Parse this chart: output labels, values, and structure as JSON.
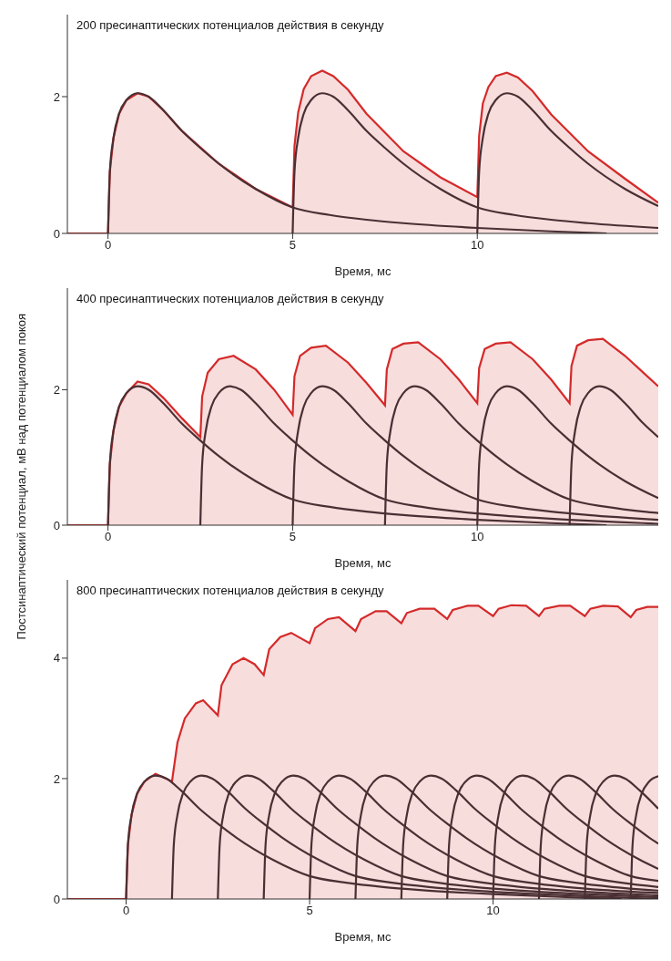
{
  "chart_data": [
    {
      "type": "line",
      "title": "200 пресинаптических потенциалов действия в секунду",
      "xlabel": "Время, мс",
      "xlim": [
        -1.1,
        14.9
      ],
      "xticks": [
        0,
        5,
        10
      ],
      "ylim": [
        0,
        3.2
      ],
      "yticks": [
        0,
        2
      ],
      "marker": "none",
      "line_style": "solid",
      "series": [
        {
          "type": "area",
          "color": "#d42a2a",
          "x": [
            -1.1,
            0,
            0.05,
            0.15,
            0.3,
            0.5,
            0.8,
            1.1,
            1.5,
            2,
            3,
            4,
            5,
            5.05,
            5.15,
            5.3,
            5.5,
            5.8,
            6.1,
            6.5,
            7,
            8,
            9,
            10,
            10.05,
            10.15,
            10.3,
            10.5,
            10.8,
            11.1,
            11.5,
            12,
            13,
            14,
            14.9
          ],
          "values": [
            0,
            0,
            0.9,
            1.4,
            1.75,
            1.95,
            2.05,
            2.0,
            1.8,
            1.5,
            1.02,
            0.65,
            0.38,
            1.28,
            1.77,
            2.11,
            2.3,
            2.38,
            2.3,
            2.1,
            1.75,
            1.2,
            0.82,
            0.53,
            1.43,
            1.9,
            2.14,
            2.3,
            2.35,
            2.28,
            2.08,
            1.74,
            1.2,
            0.8,
            0.45
          ]
        },
        {
          "color": "#4a2f33",
          "x": [
            0,
            0.05,
            0.15,
            0.3,
            0.5,
            0.8,
            1.1,
            1.5,
            2,
            2.5,
            3,
            4,
            5,
            6,
            7,
            8,
            10,
            12,
            13.5
          ],
          "values": [
            0,
            0.9,
            1.4,
            1.75,
            1.95,
            2.05,
            2.0,
            1.8,
            1.5,
            1.25,
            1.02,
            0.65,
            0.38,
            0.27,
            0.2,
            0.15,
            0.08,
            0.03,
            0
          ]
        },
        {
          "color": "#4a2f33",
          "x": [
            5,
            5.05,
            5.15,
            5.3,
            5.5,
            5.8,
            6.1,
            6.5,
            7,
            7.5,
            8,
            9,
            10,
            11,
            12,
            13,
            14.9
          ],
          "values": [
            0,
            0.9,
            1.4,
            1.75,
            1.95,
            2.05,
            2.0,
            1.8,
            1.5,
            1.25,
            1.02,
            0.65,
            0.38,
            0.27,
            0.2,
            0.15,
            0.08
          ]
        },
        {
          "color": "#4a2f33",
          "x": [
            10,
            10.05,
            10.15,
            10.3,
            10.5,
            10.8,
            11.1,
            11.5,
            12,
            12.5,
            13,
            14,
            14.9
          ],
          "values": [
            0,
            0.9,
            1.4,
            1.75,
            1.95,
            2.05,
            2.0,
            1.8,
            1.5,
            1.25,
            1.02,
            0.65,
            0.4
          ]
        }
      ]
    },
    {
      "type": "line",
      "title": "400 пресинаптических потенциалов действия в секунду",
      "xlabel": "Время, мс",
      "ylabel": "Постсинаптический потенциал, мВ над потенциалом покоя",
      "xlim": [
        -1.1,
        14.9
      ],
      "xticks": [
        0,
        5,
        10
      ],
      "ylim": [
        0,
        3.5
      ],
      "yticks": [
        0,
        2
      ],
      "marker": "none",
      "line_style": "solid",
      "series": [
        {
          "type": "area",
          "color": "#d42a2a",
          "x": [
            -1.1,
            0,
            0.05,
            0.15,
            0.3,
            0.5,
            0.8,
            1.1,
            1.5,
            2,
            2.5,
            2.55,
            2.7,
            3,
            3.4,
            4,
            4.5,
            5,
            5.05,
            5.2,
            5.5,
            5.9,
            6.5,
            7,
            7.5,
            7.55,
            7.7,
            8,
            8.4,
            9,
            9.5,
            10,
            10.05,
            10.2,
            10.5,
            10.9,
            11.5,
            12,
            12.5,
            12.55,
            12.7,
            13,
            13.4,
            14,
            14.5,
            14.9
          ],
          "values": [
            0,
            0,
            0.9,
            1.4,
            1.75,
            1.95,
            2.12,
            2.08,
            1.88,
            1.58,
            1.3,
            1.9,
            2.25,
            2.45,
            2.5,
            2.3,
            2.0,
            1.63,
            2.2,
            2.5,
            2.62,
            2.65,
            2.4,
            2.1,
            1.77,
            2.3,
            2.6,
            2.68,
            2.7,
            2.45,
            2.15,
            1.8,
            2.32,
            2.6,
            2.68,
            2.7,
            2.45,
            2.15,
            1.8,
            2.35,
            2.65,
            2.73,
            2.75,
            2.5,
            2.25,
            2.05
          ]
        },
        {
          "color": "#4a2f33",
          "x": [
            0,
            0.05,
            0.15,
            0.3,
            0.5,
            0.8,
            1.1,
            1.5,
            2,
            2.5,
            3,
            4,
            5,
            6,
            7,
            8,
            10,
            12,
            13.5
          ],
          "values": [
            0,
            0.9,
            1.4,
            1.75,
            1.95,
            2.05,
            2.0,
            1.8,
            1.5,
            1.25,
            1.02,
            0.65,
            0.38,
            0.27,
            0.2,
            0.15,
            0.08,
            0.03,
            0
          ]
        },
        {
          "color": "#4a2f33",
          "x": [
            2.5,
            2.55,
            2.65,
            2.8,
            3,
            3.3,
            3.6,
            4,
            4.5,
            5,
            5.5,
            6.5,
            7.5,
            8.5,
            9.5,
            10.5,
            12.5,
            14.5,
            14.9
          ],
          "values": [
            0,
            0.9,
            1.4,
            1.75,
            1.95,
            2.05,
            2.0,
            1.8,
            1.5,
            1.25,
            1.02,
            0.65,
            0.38,
            0.27,
            0.2,
            0.15,
            0.08,
            0.03,
            0.02
          ]
        },
        {
          "color": "#4a2f33",
          "x": [
            5,
            5.05,
            5.15,
            5.3,
            5.5,
            5.8,
            6.1,
            6.5,
            7,
            7.5,
            8,
            9,
            10,
            11,
            12,
            13,
            14.9
          ],
          "values": [
            0,
            0.9,
            1.4,
            1.75,
            1.95,
            2.05,
            2.0,
            1.8,
            1.5,
            1.25,
            1.02,
            0.65,
            0.38,
            0.27,
            0.2,
            0.15,
            0.08
          ]
        },
        {
          "color": "#4a2f33",
          "x": [
            7.5,
            7.55,
            7.65,
            7.8,
            8,
            8.3,
            8.6,
            9,
            9.5,
            10,
            10.5,
            11.5,
            12.5,
            13.5,
            14.5,
            14.9
          ],
          "values": [
            0,
            0.9,
            1.4,
            1.75,
            1.95,
            2.05,
            2.0,
            1.8,
            1.5,
            1.25,
            1.02,
            0.65,
            0.38,
            0.27,
            0.2,
            0.18
          ]
        },
        {
          "color": "#4a2f33",
          "x": [
            10,
            10.05,
            10.15,
            10.3,
            10.5,
            10.8,
            11.1,
            11.5,
            12,
            12.5,
            13,
            14,
            14.9
          ],
          "values": [
            0,
            0.9,
            1.4,
            1.75,
            1.95,
            2.05,
            2.0,
            1.8,
            1.5,
            1.25,
            1.02,
            0.65,
            0.4
          ]
        },
        {
          "color": "#4a2f33",
          "x": [
            12.5,
            12.55,
            12.65,
            12.8,
            13,
            13.3,
            13.6,
            14,
            14.5,
            14.9
          ],
          "values": [
            0,
            0.9,
            1.4,
            1.75,
            1.95,
            2.05,
            2.0,
            1.8,
            1.5,
            1.3
          ]
        }
      ]
    },
    {
      "type": "line",
      "title": "800 пресинаптических потенциалов действия в секунду",
      "xlabel": "Время, мс",
      "xlim": [
        -1.6,
        14.5
      ],
      "xticks": [
        0,
        5,
        10
      ],
      "ylim": [
        0,
        5.3
      ],
      "yticks": [
        0,
        2,
        4
      ],
      "marker": "none",
      "line_style": "solid",
      "series": [
        {
          "type": "area",
          "color": "#d42a2a",
          "x": [
            -1.6,
            0,
            0.05,
            0.15,
            0.3,
            0.5,
            0.8,
            1.1,
            1.25,
            1.4,
            1.6,
            1.9,
            2.1,
            2.5,
            2.6,
            2.9,
            3.2,
            3.5,
            3.75,
            3.9,
            4.2,
            4.5,
            5,
            5.15,
            5.5,
            5.8,
            6.25,
            6.4,
            6.8,
            7.1,
            7.5,
            7.65,
            8,
            8.4,
            8.75,
            8.9,
            9.3,
            9.6,
            10,
            10.15,
            10.5,
            10.9,
            11.25,
            11.4,
            11.8,
            12.1,
            12.5,
            12.65,
            13,
            13.4,
            13.75,
            13.9,
            14.2,
            14.5
          ],
          "values": [
            0,
            0,
            0.9,
            1.4,
            1.75,
            1.95,
            2.08,
            2.0,
            1.95,
            2.6,
            3.0,
            3.25,
            3.3,
            3.05,
            3.55,
            3.9,
            4.0,
            3.9,
            3.72,
            4.15,
            4.35,
            4.42,
            4.25,
            4.5,
            4.65,
            4.68,
            4.45,
            4.65,
            4.78,
            4.78,
            4.58,
            4.75,
            4.82,
            4.82,
            4.65,
            4.8,
            4.87,
            4.87,
            4.7,
            4.82,
            4.88,
            4.87,
            4.7,
            4.82,
            4.87,
            4.87,
            4.7,
            4.82,
            4.87,
            4.86,
            4.68,
            4.8,
            4.85,
            4.85
          ]
        },
        {
          "color": "#4a2f33",
          "x": [
            0,
            0.05,
            0.15,
            0.3,
            0.5,
            0.8,
            1.1,
            1.5,
            2,
            2.5,
            3,
            4,
            5,
            6,
            7,
            8,
            10,
            12,
            13.5
          ],
          "values": [
            0,
            0.9,
            1.4,
            1.75,
            1.95,
            2.05,
            2.0,
            1.8,
            1.5,
            1.25,
            1.02,
            0.65,
            0.38,
            0.27,
            0.2,
            0.15,
            0.08,
            0.03,
            0
          ]
        },
        {
          "color": "#4a2f33",
          "x": [
            1.25,
            1.3,
            1.4,
            1.55,
            1.75,
            2.05,
            2.35,
            2.75,
            3.25,
            3.75,
            4.25,
            5.25,
            6.25,
            7.25,
            8.25,
            9.25,
            11.25,
            13.25,
            14.5
          ],
          "values": [
            0,
            0.9,
            1.4,
            1.75,
            1.95,
            2.05,
            2.0,
            1.8,
            1.5,
            1.25,
            1.02,
            0.65,
            0.38,
            0.27,
            0.2,
            0.15,
            0.08,
            0.03,
            0
          ]
        },
        {
          "color": "#4a2f33",
          "x": [
            2.5,
            2.55,
            2.65,
            2.8,
            3,
            3.3,
            3.6,
            4,
            4.5,
            5,
            5.5,
            6.5,
            7.5,
            8.5,
            9.5,
            10.5,
            12.5,
            14.5
          ],
          "values": [
            0,
            0.9,
            1.4,
            1.75,
            1.95,
            2.05,
            2.0,
            1.8,
            1.5,
            1.25,
            1.02,
            0.65,
            0.38,
            0.27,
            0.2,
            0.15,
            0.08,
            0.03
          ]
        },
        {
          "color": "#4a2f33",
          "x": [
            3.75,
            3.8,
            3.9,
            4.05,
            4.25,
            4.55,
            4.85,
            5.25,
            5.75,
            6.25,
            6.75,
            7.75,
            8.75,
            9.75,
            10.75,
            11.75,
            13.75,
            14.5
          ],
          "values": [
            0,
            0.9,
            1.4,
            1.75,
            1.95,
            2.05,
            2.0,
            1.8,
            1.5,
            1.25,
            1.02,
            0.65,
            0.38,
            0.27,
            0.2,
            0.15,
            0.08,
            0.06
          ]
        },
        {
          "color": "#4a2f33",
          "x": [
            5,
            5.05,
            5.15,
            5.3,
            5.5,
            5.8,
            6.1,
            6.5,
            7,
            7.5,
            8,
            9,
            10,
            11,
            12,
            13,
            14.5
          ],
          "values": [
            0,
            0.9,
            1.4,
            1.75,
            1.95,
            2.05,
            2.0,
            1.8,
            1.5,
            1.25,
            1.02,
            0.65,
            0.38,
            0.27,
            0.2,
            0.15,
            0.1
          ]
        },
        {
          "color": "#4a2f33",
          "x": [
            6.25,
            6.3,
            6.4,
            6.55,
            6.75,
            7.05,
            7.35,
            7.75,
            8.25,
            8.75,
            9.25,
            10.25,
            11.25,
            12.25,
            13.25,
            14.25,
            14.5
          ],
          "values": [
            0,
            0.9,
            1.4,
            1.75,
            1.95,
            2.05,
            2.0,
            1.8,
            1.5,
            1.25,
            1.02,
            0.65,
            0.38,
            0.27,
            0.2,
            0.15,
            0.14
          ]
        },
        {
          "color": "#4a2f33",
          "x": [
            7.5,
            7.55,
            7.65,
            7.8,
            8,
            8.3,
            8.6,
            9,
            9.5,
            10,
            10.5,
            11.5,
            12.5,
            13.5,
            14.5
          ],
          "values": [
            0,
            0.9,
            1.4,
            1.75,
            1.95,
            2.05,
            2.0,
            1.8,
            1.5,
            1.25,
            1.02,
            0.65,
            0.38,
            0.27,
            0.2
          ]
        },
        {
          "color": "#4a2f33",
          "x": [
            8.75,
            8.8,
            8.9,
            9.05,
            9.25,
            9.55,
            9.85,
            10.25,
            10.75,
            11.25,
            11.75,
            12.75,
            13.75,
            14.5
          ],
          "values": [
            0,
            0.9,
            1.4,
            1.75,
            1.95,
            2.05,
            2.0,
            1.8,
            1.5,
            1.25,
            1.02,
            0.65,
            0.38,
            0.3
          ]
        },
        {
          "color": "#4a2f33",
          "x": [
            10,
            10.05,
            10.15,
            10.3,
            10.5,
            10.8,
            11.1,
            11.5,
            12,
            12.5,
            13,
            14,
            14.5
          ],
          "values": [
            0,
            0.9,
            1.4,
            1.75,
            1.95,
            2.05,
            2.0,
            1.8,
            1.5,
            1.25,
            1.02,
            0.65,
            0.5
          ]
        },
        {
          "color": "#4a2f33",
          "x": [
            11.25,
            11.3,
            11.4,
            11.55,
            11.75,
            12.05,
            12.35,
            12.75,
            13.25,
            13.75,
            14.25,
            14.5
          ],
          "values": [
            0,
            0.9,
            1.4,
            1.75,
            1.95,
            2.05,
            2.0,
            1.8,
            1.5,
            1.25,
            1.02,
            0.92
          ]
        },
        {
          "color": "#4a2f33",
          "x": [
            12.5,
            12.55,
            12.65,
            12.8,
            13,
            13.3,
            13.6,
            14,
            14.5
          ],
          "values": [
            0,
            0.9,
            1.4,
            1.75,
            1.95,
            2.05,
            2.0,
            1.8,
            1.5
          ]
        },
        {
          "color": "#4a2f33",
          "x": [
            13.75,
            13.8,
            13.9,
            14.05,
            14.25,
            14.5
          ],
          "values": [
            0,
            0.9,
            1.4,
            1.75,
            1.95,
            2.04
          ]
        }
      ]
    }
  ]
}
